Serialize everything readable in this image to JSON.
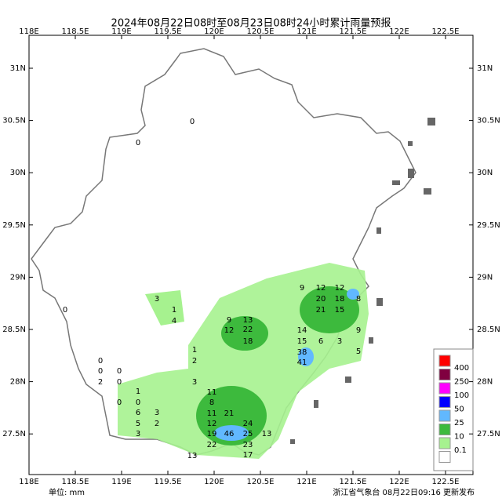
{
  "title": "2024年08月22日08时至08月23日08时24小时累计雨量预报",
  "lon_labels": [
    "118E",
    "118.5E",
    "119E",
    "119.5E",
    "120E",
    "120.5E",
    "121E",
    "121.5E",
    "122E",
    "122.5E"
  ],
  "lat_labels": [
    "31N",
    "30.5N",
    "30N",
    "29.5N",
    "29N",
    "28.5N",
    "28N",
    "27.5N"
  ],
  "legend": [
    "400",
    "250",
    "100",
    "50",
    "25",
    "10",
    "0.1"
  ],
  "unit_label": "单位: mm",
  "footer": "浙江省气象台 08月22日09:16 更新发布",
  "rain_values": [
    0,
    0,
    3,
    1,
    4,
    0,
    0,
    0,
    2,
    0,
    0,
    1,
    0,
    0,
    6,
    5,
    3,
    3,
    2,
    1,
    2,
    3,
    11,
    8,
    11,
    12,
    19,
    22,
    13,
    46,
    25,
    23,
    17,
    13,
    22,
    13,
    18,
    9,
    12,
    21,
    24,
    38,
    41,
    14,
    15,
    20,
    18,
    21,
    15,
    12,
    6,
    3,
    9,
    5,
    8,
    9,
    12
  ]
}
